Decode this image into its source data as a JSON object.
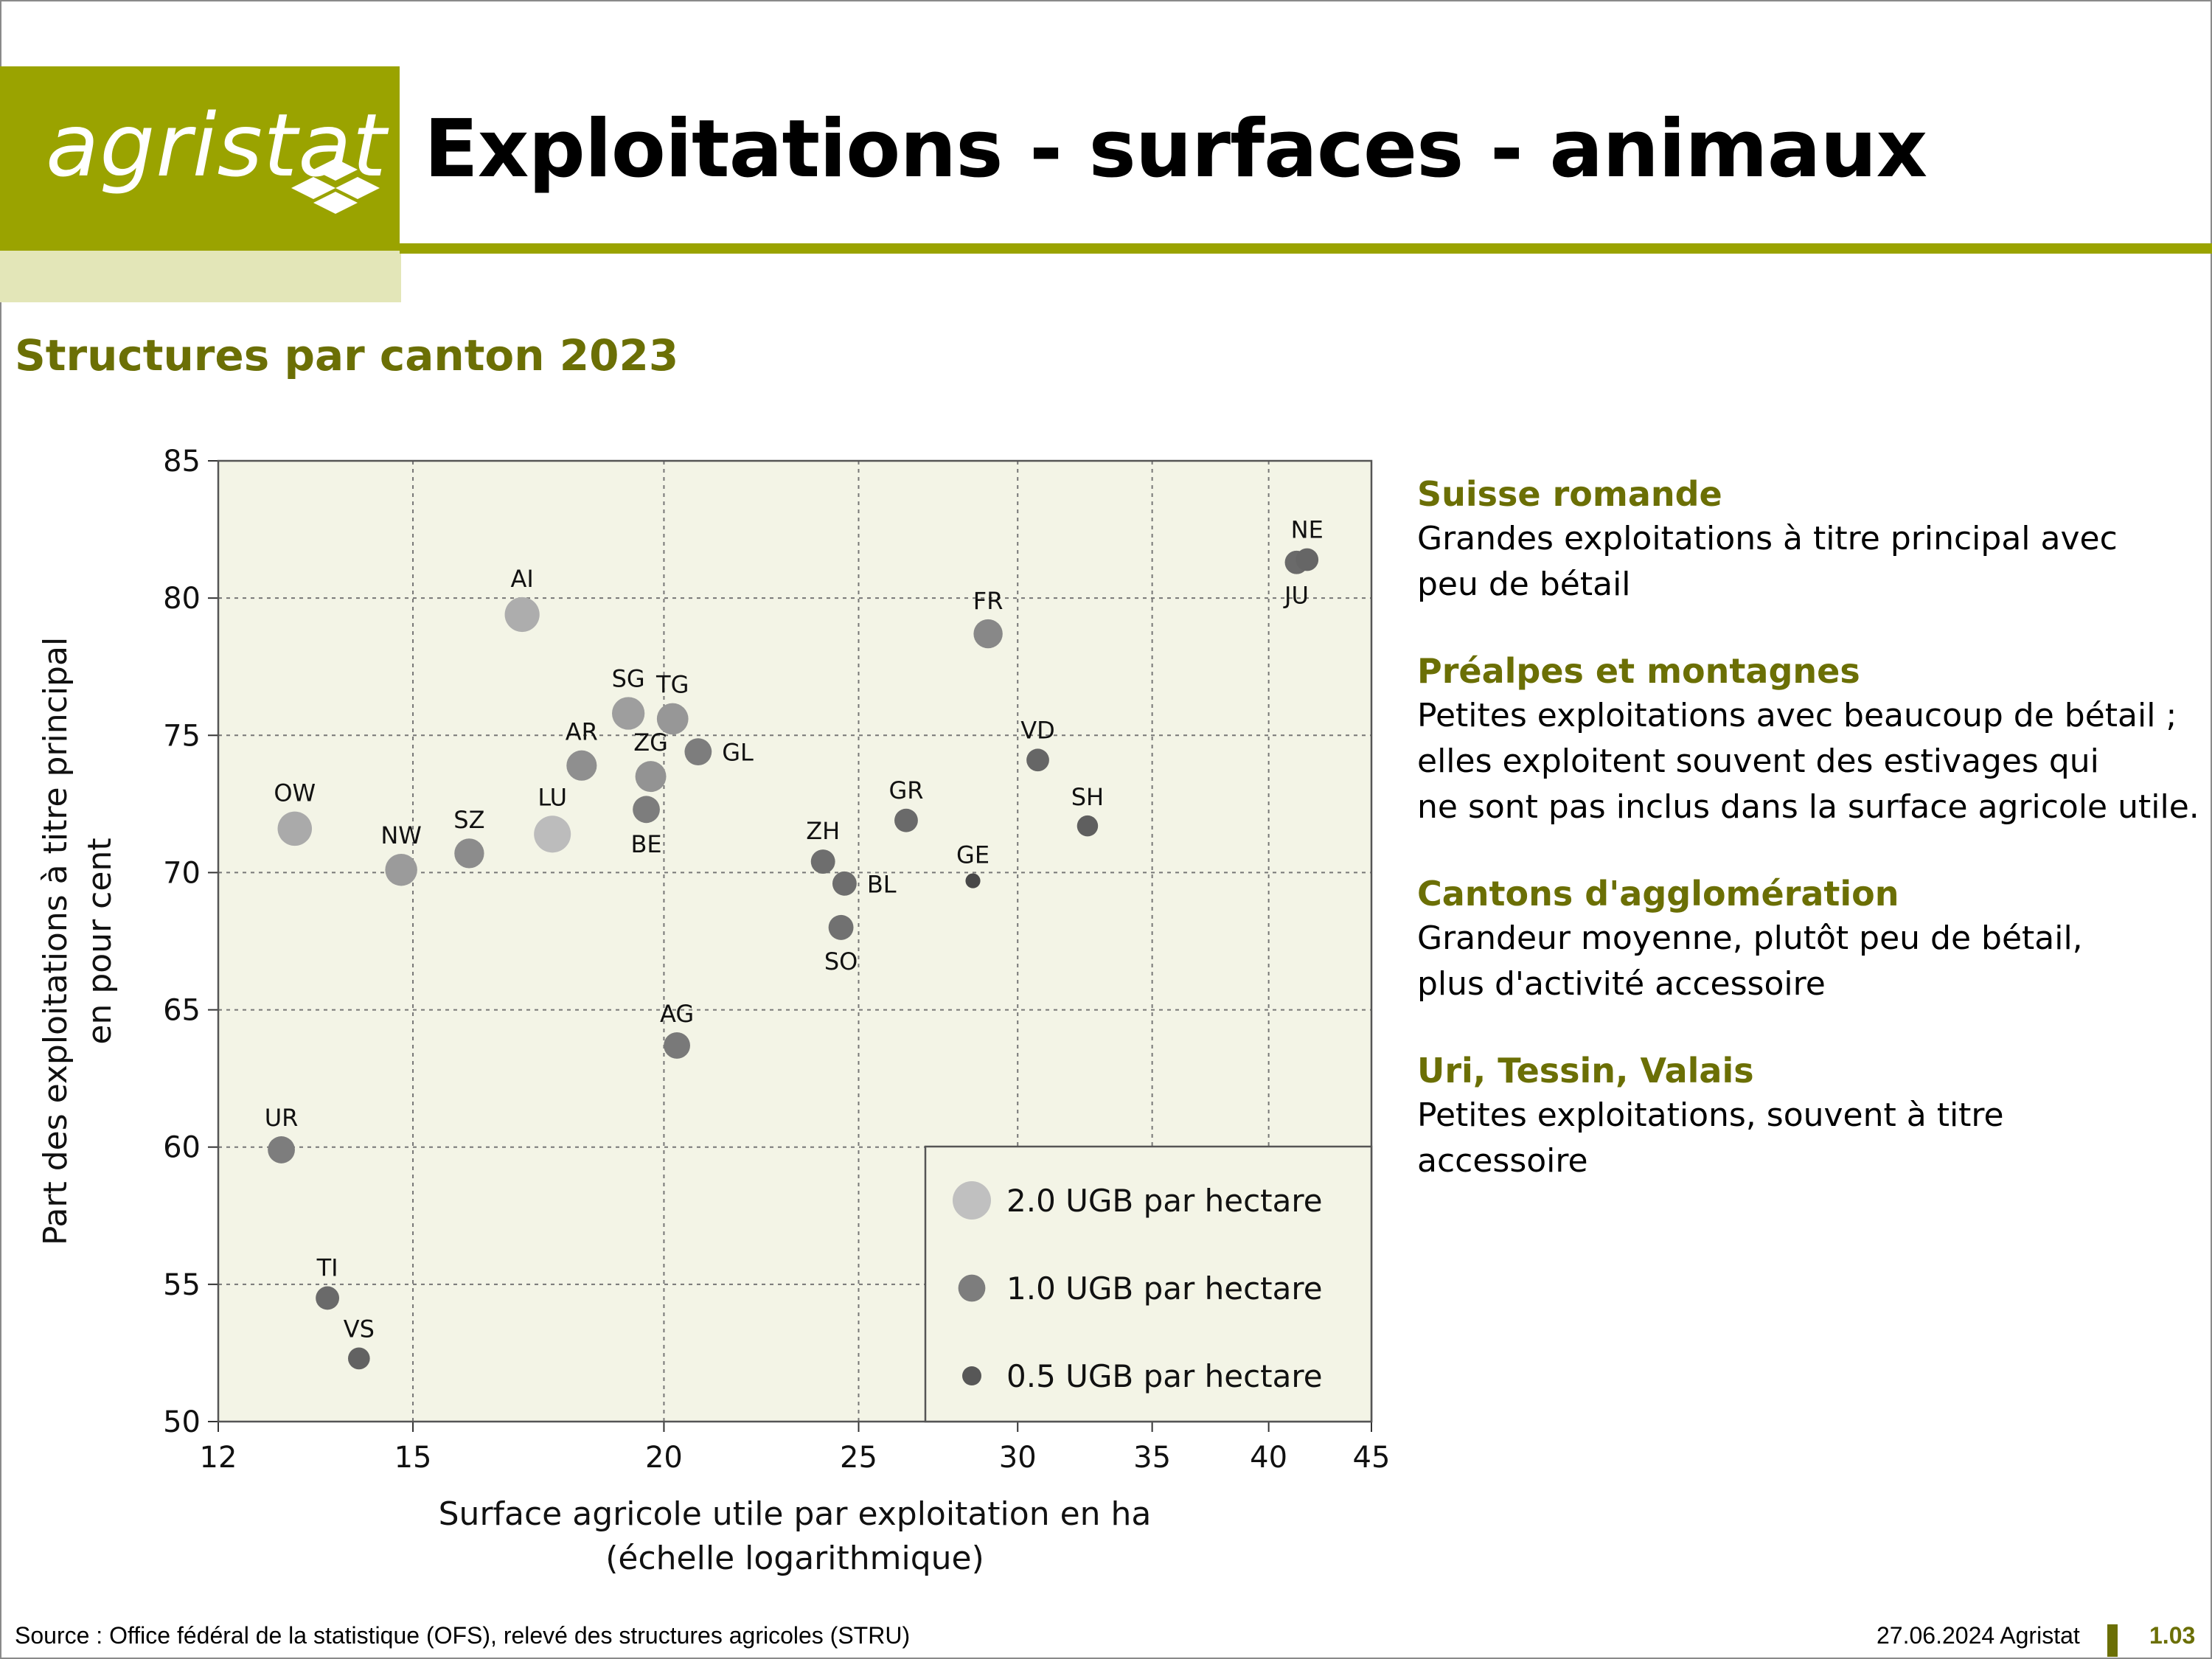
{
  "logo": {
    "text": "agristat"
  },
  "header": {
    "title": "Exploitations - surfaces - animaux"
  },
  "subtitle": "Structures par canton 2023",
  "notes": [
    {
      "heading": "Suisse romande",
      "lines": [
        "Grandes exploitations à titre principal avec",
        "peu de bétail"
      ]
    },
    {
      "heading": "Préalpes et montagnes",
      "lines": [
        "Petites exploitations avec beaucoup de bétail ;",
        "elles exploitent souvent des estivages qui",
        "ne sont pas inclus dans la surface agricole utile."
      ]
    },
    {
      "heading": "Cantons d'agglomération",
      "lines": [
        "Grandeur moyenne, plutôt peu de bétail,",
        "plus d'activité accessoire"
      ]
    },
    {
      "heading": "Uri, Tessin, Valais",
      "lines": [
        "Petites exploitations, souvent à titre",
        "accessoire"
      ]
    }
  ],
  "footer": {
    "source": "Source : Office fédéral de la statistique (OFS), relevé des structures agricoles (STRU)",
    "date": "27.06.2024 Agristat",
    "page": "1.03"
  },
  "colors": {
    "accent": "#9aa300",
    "accent_dark": "#6b6f05",
    "plot_bg": "#f3f4e6"
  },
  "chart_data": {
    "type": "scatter",
    "title": "Structures par canton 2023",
    "xlabel": [
      "Surface agricole utile par exploitation en ha",
      "(échelle logarithmique)"
    ],
    "ylabel": [
      "Part des exploitations à titre principal",
      "en pour cent"
    ],
    "x_scale": "log",
    "xlim": [
      12,
      45
    ],
    "ylim": [
      50,
      85
    ],
    "x_ticks": [
      12,
      15,
      20,
      25,
      30,
      35,
      40,
      45
    ],
    "y_ticks": [
      50,
      55,
      60,
      65,
      70,
      75,
      80,
      85
    ],
    "grid": true,
    "size_variable": "UGB par hectare",
    "legend": {
      "placement": "bottom-right",
      "entries": [
        {
          "label": "2.0 UGB par hectare",
          "ugb": 2.0
        },
        {
          "label": "1.0 UGB par hectare",
          "ugb": 1.0
        },
        {
          "label": "0.5 UGB par hectare",
          "ugb": 0.5
        }
      ]
    },
    "points": [
      {
        "label": "NE",
        "x": 41.8,
        "y": 81.4,
        "ugb": 0.7,
        "label_pos": "above"
      },
      {
        "label": "JU",
        "x": 41.3,
        "y": 81.3,
        "ugb": 0.75,
        "label_pos": "below"
      },
      {
        "label": "AI",
        "x": 17.0,
        "y": 79.4,
        "ugb": 1.65,
        "label_pos": "above"
      },
      {
        "label": "FR",
        "x": 29.0,
        "y": 78.7,
        "ugb": 1.15,
        "label_pos": "above"
      },
      {
        "label": "SG",
        "x": 19.2,
        "y": 75.8,
        "ugb": 1.45,
        "label_pos": "above"
      },
      {
        "label": "TG",
        "x": 20.2,
        "y": 75.6,
        "ugb": 1.35,
        "label_pos": "above"
      },
      {
        "label": "AR",
        "x": 18.2,
        "y": 73.9,
        "ugb": 1.25,
        "label_pos": "above"
      },
      {
        "label": "ZG",
        "x": 19.7,
        "y": 73.5,
        "ugb": 1.3,
        "label_pos": "above"
      },
      {
        "label": "GL",
        "x": 20.8,
        "y": 74.4,
        "ugb": 1.0,
        "label_pos": "right"
      },
      {
        "label": "VD",
        "x": 30.7,
        "y": 74.1,
        "ugb": 0.7,
        "label_pos": "above"
      },
      {
        "label": "BE",
        "x": 19.6,
        "y": 72.3,
        "ugb": 1.0,
        "label_pos": "below"
      },
      {
        "label": "GR",
        "x": 26.4,
        "y": 71.9,
        "ugb": 0.75,
        "label_pos": "above"
      },
      {
        "label": "SH",
        "x": 32.5,
        "y": 71.7,
        "ugb": 0.6,
        "label_pos": "above"
      },
      {
        "label": "OW",
        "x": 13.1,
        "y": 71.6,
        "ugb": 1.6,
        "label_pos": "above"
      },
      {
        "label": "LU",
        "x": 17.6,
        "y": 71.4,
        "ugb": 1.85,
        "label_pos": "above"
      },
      {
        "label": "SZ",
        "x": 16.0,
        "y": 70.7,
        "ugb": 1.2,
        "label_pos": "above"
      },
      {
        "label": "ZH",
        "x": 24.0,
        "y": 70.4,
        "ugb": 0.8,
        "label_pos": "above"
      },
      {
        "label": "NW",
        "x": 14.8,
        "y": 70.1,
        "ugb": 1.4,
        "label_pos": "above"
      },
      {
        "label": "GE",
        "x": 28.5,
        "y": 69.7,
        "ugb": 0.3,
        "label_pos": "above"
      },
      {
        "label": "BL",
        "x": 24.6,
        "y": 69.6,
        "ugb": 0.8,
        "label_pos": "right"
      },
      {
        "label": "SO",
        "x": 24.5,
        "y": 68.0,
        "ugb": 0.85,
        "label_pos": "below"
      },
      {
        "label": "AG",
        "x": 20.3,
        "y": 63.7,
        "ugb": 0.95,
        "label_pos": "above"
      },
      {
        "label": "UR",
        "x": 12.9,
        "y": 59.9,
        "ugb": 1.0,
        "label_pos": "above"
      },
      {
        "label": "TI",
        "x": 13.6,
        "y": 54.5,
        "ugb": 0.75,
        "label_pos": "above"
      },
      {
        "label": "VS",
        "x": 14.1,
        "y": 52.3,
        "ugb": 0.65,
        "label_pos": "above"
      }
    ]
  }
}
